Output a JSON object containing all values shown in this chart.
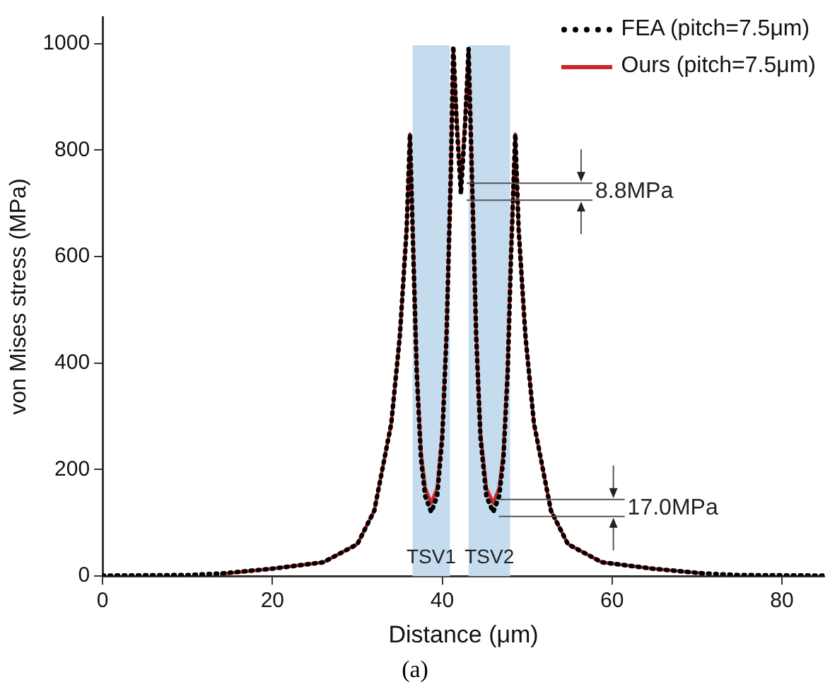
{
  "chart_data": {
    "type": "line",
    "xlabel": "Distance (μm)",
    "ylabel": "von Mises stress (MPa)",
    "xlim": [
      0,
      85
    ],
    "ylim": [
      0,
      1050
    ],
    "xticks": [
      0,
      20,
      40,
      60,
      80
    ],
    "yticks": [
      0,
      200,
      400,
      600,
      800,
      1000
    ],
    "grid": false,
    "legend": "top right",
    "marker": "none",
    "series": [
      {
        "name": "FEA (pitch=7.5μm)",
        "color": "#000000",
        "line_style": "dotted",
        "x": [
          0,
          10,
          14,
          20,
          26,
          30,
          32,
          34,
          35,
          35.8,
          36.2,
          36.6,
          37,
          37.5,
          38,
          38.7,
          39.4,
          40,
          40.5,
          41,
          41.3,
          41.7,
          42.2,
          42.7,
          43.1,
          43.5,
          44,
          44.5,
          45.2,
          46,
          46.7,
          47.2,
          47.7,
          48.1,
          48.6,
          49,
          49.8,
          50.8,
          52.8,
          54.8,
          58.8,
          64.8,
          70.8,
          75,
          85
        ],
        "values": [
          1,
          2,
          5,
          14,
          26,
          60,
          123,
          287,
          450,
          650,
          830,
          600,
          380,
          220,
          150,
          120,
          150,
          260,
          450,
          750,
          995,
          850,
          718,
          850,
          990,
          750,
          450,
          260,
          150,
          120,
          150,
          220,
          380,
          600,
          830,
          650,
          450,
          287,
          123,
          60,
          26,
          14,
          5,
          2,
          1
        ]
      },
      {
        "name": "Ours (pitch=7.5μm)",
        "color": "#c8282a",
        "line_style": "solid",
        "x": [
          14,
          20,
          26,
          30,
          32,
          34,
          35,
          35.8,
          36.2,
          36.6,
          37,
          37.5,
          38,
          38.7,
          39.4,
          40,
          40.5,
          41,
          41.3,
          41.7,
          42.2,
          42.7,
          43.1,
          43.5,
          44,
          44.5,
          45.2,
          46,
          46.7,
          47.2,
          47.7,
          48.1,
          48.6,
          49,
          49.8,
          50.8,
          52.8,
          54.8,
          58.8,
          64.8,
          70.8
        ],
        "values": [
          4,
          14,
          26,
          60,
          123,
          287,
          450,
          650,
          830,
          610,
          390,
          232,
          165,
          137,
          165,
          270,
          455,
          750,
          990,
          860,
          727,
          860,
          985,
          750,
          455,
          270,
          165,
          137,
          165,
          232,
          390,
          610,
          830,
          650,
          450,
          287,
          123,
          60,
          26,
          14,
          5
        ]
      }
    ],
    "bands": [
      {
        "axis": "x",
        "from": 36.5,
        "to": 40.9,
        "label": "TSV1",
        "color": "#c5dcef"
      },
      {
        "axis": "x",
        "from": 43.1,
        "to": 48,
        "label": "TSV2",
        "color": "#c5dcef"
      }
    ],
    "annotations": [
      {
        "text": "8.8MPa",
        "x": 42.2,
        "y": 722
      },
      {
        "text": "17.0MPa",
        "x": 46,
        "y": 128
      },
      "(a)"
    ]
  }
}
